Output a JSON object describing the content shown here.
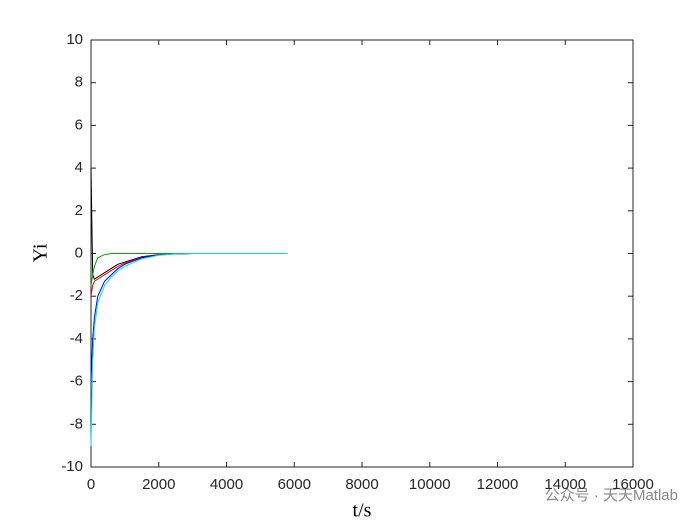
{
  "chart_data": {
    "type": "line",
    "xlabel": "t/s",
    "ylabel": "Yi",
    "x": [
      0,
      50,
      100,
      200,
      400,
      600,
      800,
      1000,
      1500,
      2000,
      2500,
      3000,
      4000,
      5000,
      5800
    ],
    "series": [
      {
        "color": "#000000",
        "values": [
          4,
          -1,
          -1.2,
          -1.1,
          -0.9,
          -0.7,
          -0.5,
          -0.4,
          -0.15,
          -0.05,
          -0.02,
          0,
          0,
          0,
          0
        ]
      },
      {
        "color": "#ff0000",
        "values": [
          -2,
          -1.5,
          -1.3,
          -1.2,
          -1,
          -0.8,
          -0.6,
          -0.45,
          -0.18,
          -0.06,
          -0.02,
          0,
          0,
          0,
          0
        ]
      },
      {
        "color": "#00aa00",
        "values": [
          -1.5,
          -1,
          -0.6,
          -0.2,
          -0.05,
          0,
          0,
          0,
          0,
          0,
          0,
          0,
          0,
          0,
          0
        ]
      },
      {
        "color": "#0000ff",
        "values": [
          -6,
          -4,
          -3,
          -2,
          -1.3,
          -1,
          -0.7,
          -0.5,
          -0.2,
          -0.07,
          -0.02,
          0,
          0,
          0,
          0
        ]
      },
      {
        "color": "#00e5e5",
        "values": [
          -9,
          -5,
          -3.5,
          -2.3,
          -1.5,
          -1.1,
          -0.8,
          -0.6,
          -0.25,
          -0.08,
          -0.02,
          0,
          0,
          0,
          0
        ]
      }
    ],
    "xlim": [
      0,
      16000
    ],
    "xticks": [
      0,
      2000,
      4000,
      6000,
      8000,
      10000,
      12000,
      14000,
      16000
    ],
    "ylim": [
      -10,
      10
    ],
    "yticks": [
      -10,
      -8,
      -6,
      -4,
      -2,
      0,
      2,
      4,
      6,
      8,
      10
    ],
    "grid": false,
    "watermark": "公众号 · 天天Matlab"
  }
}
